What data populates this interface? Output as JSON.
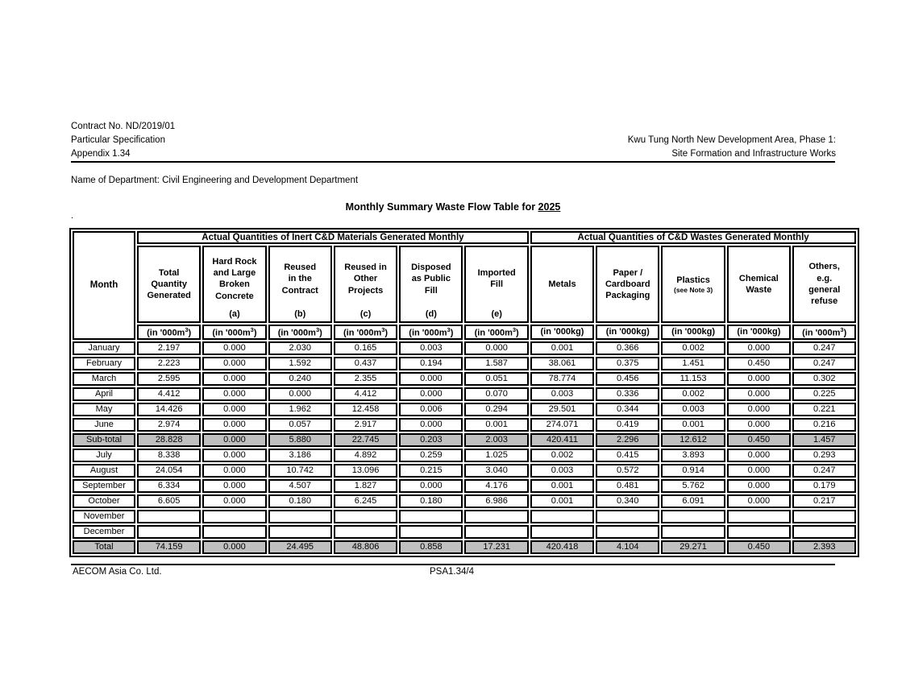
{
  "header": {
    "contract_no": "Contract No. ND/2019/01",
    "spec": "Particular Specification",
    "appendix": "Appendix 1.34",
    "project_line1": "Kwu Tung North New Development Area, Phase 1:",
    "project_line2": "Site Formation and Infrastructure Works"
  },
  "department_line": "Name of Department: Civil Engineering and Development Department",
  "title": {
    "prefix": "Monthly Summary Waste Flow Table for ",
    "year": "2025"
  },
  "stray_dot": ".",
  "table": {
    "month_header": "Month",
    "group_headers": [
      "Actual Quantities of Inert C&D Materials Generated Monthly",
      "Actual Quantities of C&D Wastes Generated Monthly"
    ],
    "group_spans": [
      6,
      5
    ],
    "columns": [
      {
        "label": "Total\nQuantity\nGenerated",
        "note": "",
        "sublabel": "",
        "unit": "(in '000m³)"
      },
      {
        "label": "Hard Rock\nand Large\nBroken\nConcrete",
        "note": "",
        "sublabel": "(a)",
        "unit": "(in '000m³)"
      },
      {
        "label": "Reused\nin the\nContract",
        "note": "",
        "sublabel": "(b)",
        "unit": "(in '000m³)"
      },
      {
        "label": "Reused in\nOther\nProjects",
        "note": "",
        "sublabel": "(c)",
        "unit": "(in '000m³)"
      },
      {
        "label": "Disposed\nas Public\nFill",
        "note": "",
        "sublabel": "(d)",
        "unit": "(in '000m³)"
      },
      {
        "label": "Imported\nFill",
        "note": "",
        "sublabel": "(e)",
        "unit": "(in '000m³)"
      },
      {
        "label": "Metals",
        "note": "",
        "sublabel": "",
        "unit": "(in '000kg)"
      },
      {
        "label": "Paper /\nCardboard\nPackaging",
        "note": "",
        "sublabel": "",
        "unit": "(in '000kg)"
      },
      {
        "label": "Plastics",
        "note": "(see Note 3)",
        "sublabel": "",
        "unit": "(in '000kg)"
      },
      {
        "label": "Chemical\nWaste",
        "note": "",
        "sublabel": "",
        "unit": "(in '000kg)"
      },
      {
        "label": "Others,\ne.g.\ngeneral\nrefuse",
        "note": "",
        "sublabel": "",
        "unit": "(in '000m³)"
      }
    ],
    "rows": [
      {
        "month": "January",
        "style": "normal",
        "values": [
          "2.197",
          "0.000",
          "2.030",
          "0.165",
          "0.003",
          "0.000",
          "0.001",
          "0.366",
          "0.002",
          "0.000",
          "0.247"
        ]
      },
      {
        "month": "February",
        "style": "normal",
        "values": [
          "2.223",
          "0.000",
          "1.592",
          "0.437",
          "0.194",
          "1.587",
          "38.061",
          "0.375",
          "1.451",
          "0.450",
          "0.247"
        ]
      },
      {
        "month": "March",
        "style": "normal",
        "values": [
          "2.595",
          "0.000",
          "0.240",
          "2.355",
          "0.000",
          "0.051",
          "78.774",
          "0.456",
          "11.153",
          "0.000",
          "0.302"
        ]
      },
      {
        "month": "April",
        "style": "normal",
        "values": [
          "4.412",
          "0.000",
          "0.000",
          "4.412",
          "0.000",
          "0.070",
          "0.003",
          "0.336",
          "0.002",
          "0.000",
          "0.225"
        ]
      },
      {
        "month": "May",
        "style": "normal",
        "values": [
          "14.426",
          "0.000",
          "1.962",
          "12.458",
          "0.006",
          "0.294",
          "29.501",
          "0.344",
          "0.003",
          "0.000",
          "0.221"
        ]
      },
      {
        "month": "June",
        "style": "normal",
        "values": [
          "2.974",
          "0.000",
          "0.057",
          "2.917",
          "0.000",
          "0.001",
          "274.071",
          "0.419",
          "0.001",
          "0.000",
          "0.216"
        ]
      },
      {
        "month": "Sub-total",
        "style": "total",
        "values": [
          "28.828",
          "0.000",
          "5.880",
          "22.745",
          "0.203",
          "2.003",
          "420.411",
          "2.296",
          "12.612",
          "0.450",
          "1.457"
        ]
      },
      {
        "month": "July",
        "style": "normal",
        "values": [
          "8.338",
          "0.000",
          "3.186",
          "4.892",
          "0.259",
          "1.025",
          "0.002",
          "0.415",
          "3.893",
          "0.000",
          "0.293"
        ]
      },
      {
        "month": "August",
        "style": "normal",
        "values": [
          "24.054",
          "0.000",
          "10.742",
          "13.096",
          "0.215",
          "3.040",
          "0.003",
          "0.572",
          "0.914",
          "0.000",
          "0.247"
        ]
      },
      {
        "month": "September",
        "style": "normal",
        "values": [
          "6.334",
          "0.000",
          "4.507",
          "1.827",
          "0.000",
          "4.176",
          "0.001",
          "0.481",
          "5.762",
          "0.000",
          "0.179"
        ]
      },
      {
        "month": "October",
        "style": "normal",
        "values": [
          "6.605",
          "0.000",
          "0.180",
          "6.245",
          "0.180",
          "6.986",
          "0.001",
          "0.340",
          "6.091",
          "0.000",
          "0.217"
        ]
      },
      {
        "month": "November",
        "style": "normal",
        "values": [
          "",
          "",
          "",
          "",
          "",
          "",
          "",
          "",
          "",
          "",
          ""
        ]
      },
      {
        "month": "December",
        "style": "normal",
        "values": [
          "",
          "",
          "",
          "",
          "",
          "",
          "",
          "",
          "",
          "",
          ""
        ]
      },
      {
        "month": "Total",
        "style": "total",
        "values": [
          "74.159",
          "0.000",
          "24.495",
          "48.806",
          "0.858",
          "17.231",
          "420.418",
          "4.104",
          "29.271",
          "0.450",
          "2.393"
        ]
      }
    ]
  },
  "footer": {
    "company": "AECOM Asia Co. Ltd.",
    "page_ref": "PSA1.34/4"
  }
}
